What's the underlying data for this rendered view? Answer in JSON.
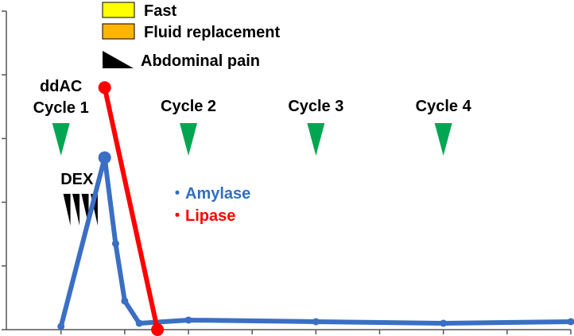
{
  "chart_data": {
    "type": "line",
    "title": "",
    "xlabel": "",
    "ylabel": "",
    "grid": false,
    "legend": {
      "entries": [
        {
          "label": "Fast",
          "symbol": "box",
          "color": "#ffff00"
        },
        {
          "label": "Fluid replacement",
          "symbol": "box",
          "color": "#ffb400"
        },
        {
          "label": "Abdominal pain",
          "symbol": "triangle",
          "color": "#000000"
        }
      ]
    },
    "series_labels": [
      {
        "label": "・Amylase",
        "color": "#2f6fbf"
      },
      {
        "label": "・Lipase",
        "color": "#ff0000"
      }
    ],
    "annotations": {
      "cycles": [
        {
          "label": "ddAC",
          "label2": "Cycle 1",
          "x": 0
        },
        {
          "label": "Cycle 2",
          "label2": "",
          "x": 7
        },
        {
          "label": "Cycle 3",
          "label2": "",
          "x": 14
        },
        {
          "label": "Cycle 4",
          "label2": "",
          "x": 21
        }
      ],
      "marker_color": "#00a651",
      "dex": {
        "label": "DEX",
        "x": [
          0.3,
          0.8,
          1.3,
          1.8
        ]
      }
    },
    "xlim": [
      -3,
      28
    ],
    "ylim": [
      0,
      100
    ],
    "y_ticks": [
      0,
      20,
      40,
      60,
      80,
      100
    ],
    "x_ticks": [
      0,
      3.5,
      7,
      10.5,
      14,
      17.5,
      21,
      24.5,
      28
    ],
    "series": [
      {
        "name": "Amylase",
        "color": "#3a6fc4",
        "points": [
          [
            0,
            1
          ],
          [
            2.4,
            54
          ],
          [
            3,
            27
          ],
          [
            3.5,
            9
          ],
          [
            4.3,
            2
          ],
          [
            7,
            3
          ],
          [
            14,
            2.5
          ],
          [
            21,
            2
          ],
          [
            28,
            2.5
          ]
        ]
      },
      {
        "name": "Lipase",
        "color": "#ff0000",
        "points": [
          [
            2.4,
            76
          ],
          [
            5.3,
            0
          ]
        ]
      }
    ]
  }
}
